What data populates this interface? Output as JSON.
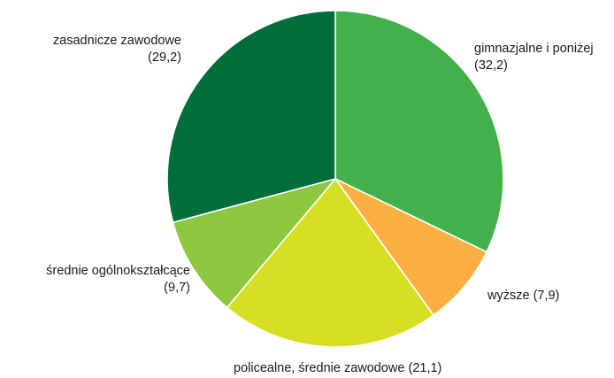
{
  "chart_data": {
    "type": "pie",
    "unit": "",
    "slices": [
      {
        "label": "gimnazjalne i poniżej",
        "value_text": "(32,2)",
        "value": 32.2,
        "color": "#43b14b"
      },
      {
        "label": "wyższe",
        "value_text": "(7,9)",
        "value": 7.9,
        "color": "#fbae41"
      },
      {
        "label": "policealne, średnie zawodowe",
        "value_text": "(21,1)",
        "value": 21.1,
        "color": "#d7df23"
      },
      {
        "label": "średnie ogólnokształcące",
        "value_text": "(9,7)",
        "value": 9.7,
        "color": "#8dc63f"
      },
      {
        "label": "zasadnicze zawodowe",
        "value_text": "(29,2)",
        "value": 29.2,
        "color": "#006e3a"
      }
    ],
    "start_angle_deg": 0,
    "direction": "clockwise"
  },
  "labels": {
    "gimnazjalne": {
      "line1": "gimnazjalne i poniżej",
      "line2": "(32,2)"
    },
    "wyzsze": {
      "line1": "wyższe (7,9)"
    },
    "policealne": {
      "line1": "policealne, średnie zawodowe (21,1)"
    },
    "srednie": {
      "line1": "średnie ogólnokształcące",
      "line2": "(9,7)"
    },
    "zasadnicze": {
      "line1": "zasadnicze zawodowe",
      "line2": "(29,2)"
    }
  }
}
